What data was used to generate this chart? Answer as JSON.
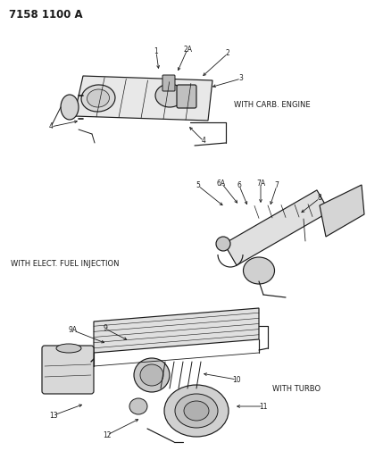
{
  "title": "7158 1100 A",
  "background_color": "#ffffff",
  "line_color": "#1a1a1a",
  "text_color": "#1a1a1a",
  "fig_width": 4.29,
  "fig_height": 5.33,
  "dpi": 100,
  "diag1_label": "WITH CARB. ENGINE",
  "diag2_label": "WITH ELECT. FUEL INJECTION",
  "diag3_label": "WITH TURBO",
  "title_font": 8.5,
  "label_font": 6.0,
  "callout_font": 5.5
}
